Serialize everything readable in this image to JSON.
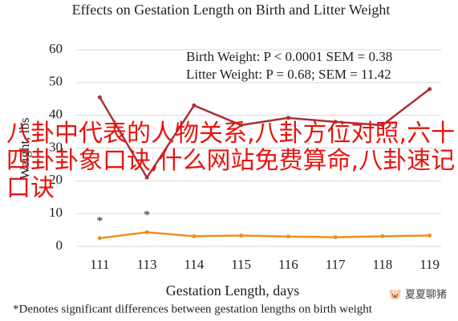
{
  "chart_data": {
    "type": "line",
    "title": "Effects on Gestation Length on Birth and Litter Weight",
    "x_label": "Gestation Length, days",
    "y_label": "Weight, lbs",
    "categories": [
      "111",
      "113",
      "114",
      "115",
      "116",
      "117",
      "118",
      "119"
    ],
    "series": [
      {
        "name": "Birth Weight: P < 0.0001 SEM = 0.38",
        "color": "#a83236",
        "values": [
          45.5,
          21,
          43,
          37,
          39.2,
          38,
          37,
          48
        ]
      },
      {
        "name": "Litter Weight: P = 0.68; SEM = 11.42",
        "color": "#f0901e",
        "values": [
          2.5,
          4.3,
          3.1,
          3.3,
          3,
          2.8,
          3.1,
          3.3
        ]
      }
    ],
    "annotations": [
      {
        "text": "*",
        "x": "111"
      },
      {
        "text": "*",
        "x": "113"
      }
    ],
    "footnote": "*Denotes significant differences between gestation lengths on birth weight",
    "ylim": [
      0,
      60
    ],
    "yticks": [
      0,
      10,
      20,
      30,
      40,
      50,
      60
    ],
    "grid": true
  },
  "overlay_text": "八卦中代表的人物关系,八卦方位对照,六十四卦卦象口诀,什么网站免费算命,八卦速记口诀",
  "watermark": "夏夏聊猪"
}
